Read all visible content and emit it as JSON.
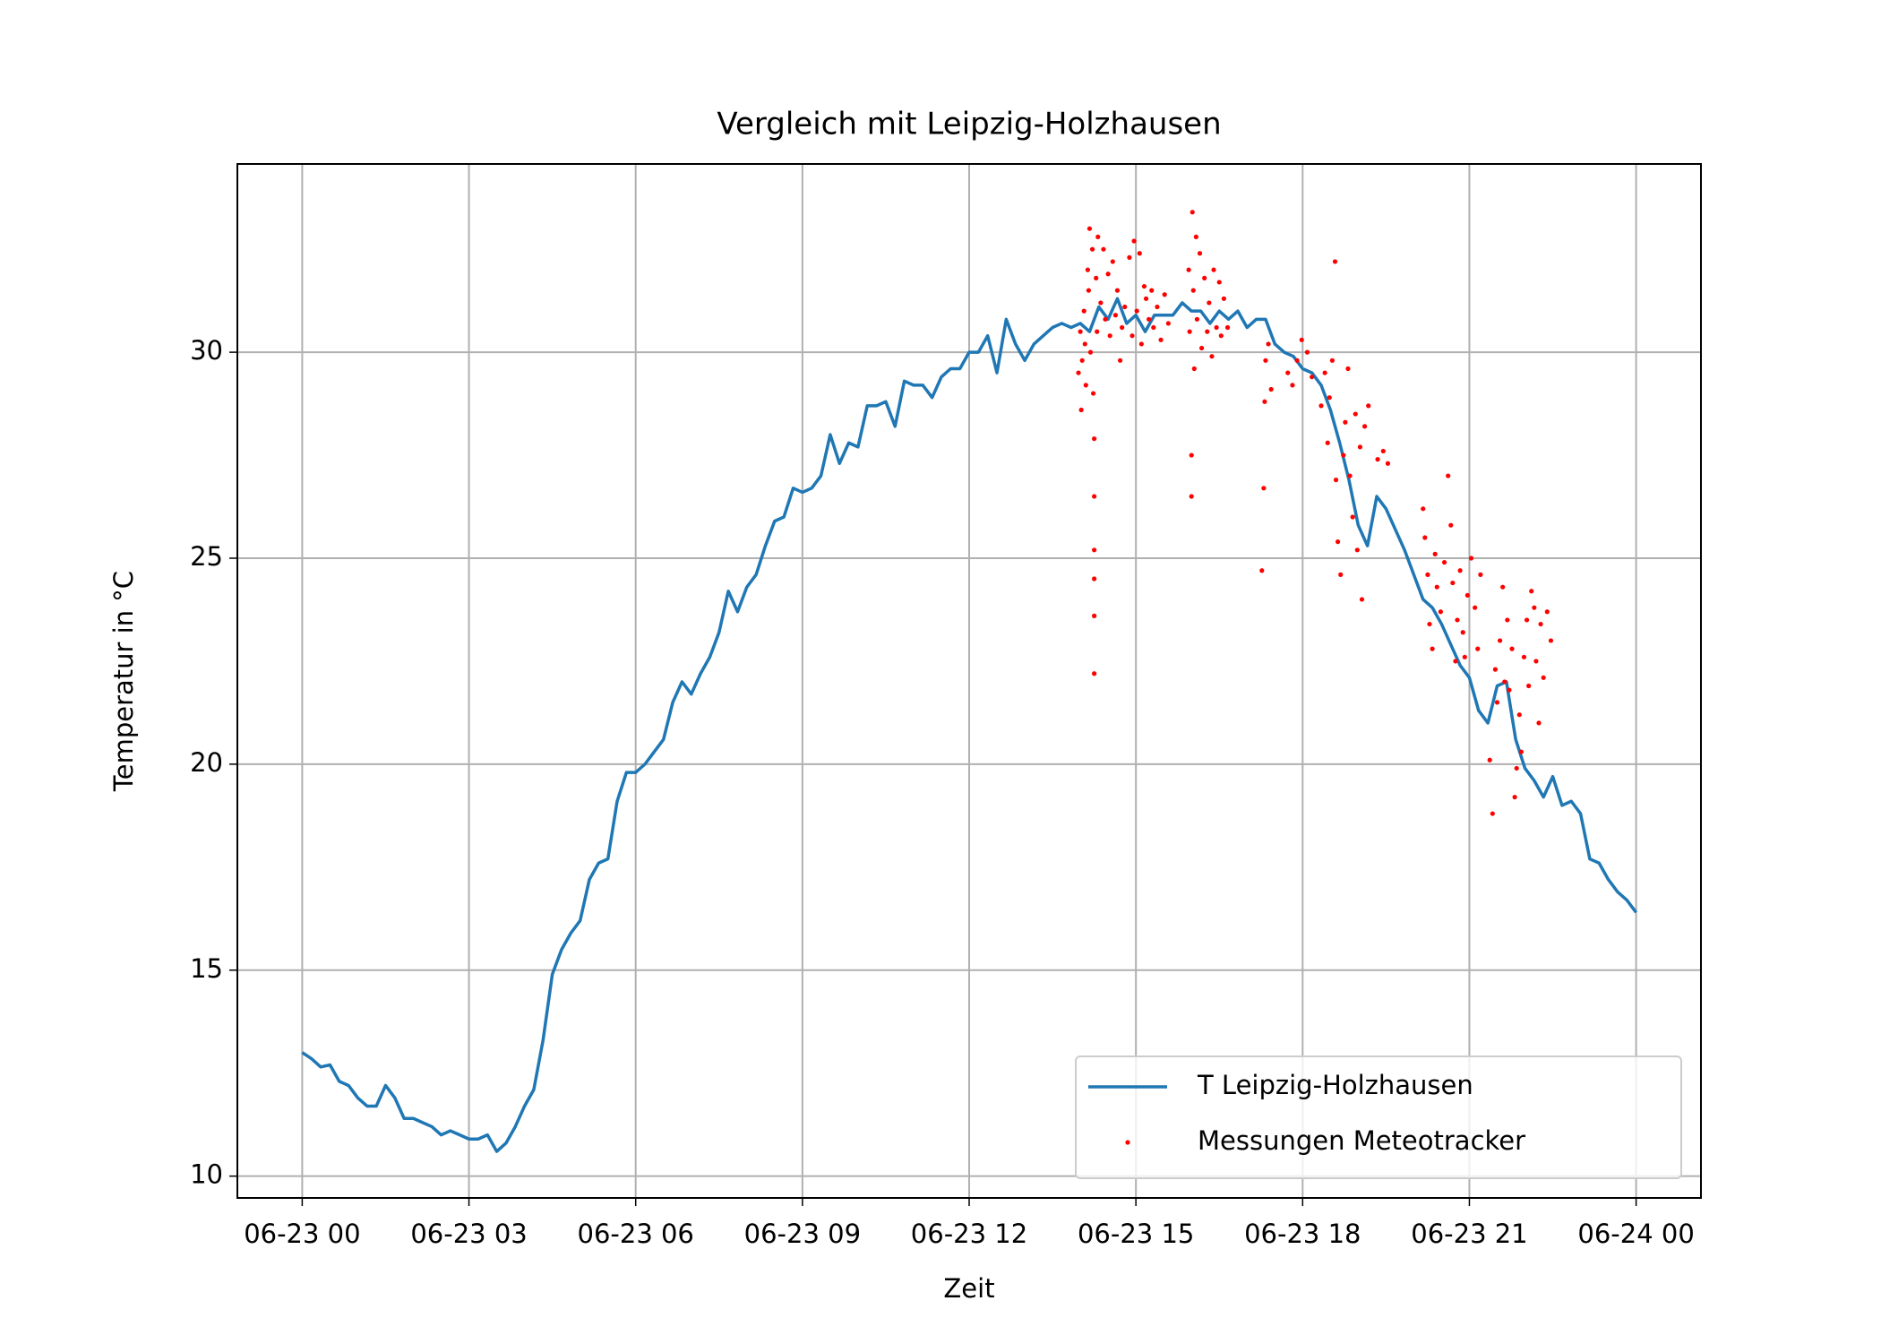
{
  "chart_data": {
    "type": "line",
    "title": "Vergleich mit Leipzig-Holzhausen",
    "x_label": "Zeit",
    "y_label": "Temperatur in °C",
    "xlim": [
      -70,
      1510
    ],
    "ylim": [
      9.47,
      34.57
    ],
    "xticks": [
      {
        "value": 0,
        "label": "06-23 00"
      },
      {
        "value": 180,
        "label": "06-23 03"
      },
      {
        "value": 360,
        "label": "06-23 06"
      },
      {
        "value": 540,
        "label": "06-23 09"
      },
      {
        "value": 720,
        "label": "06-23 12"
      },
      {
        "value": 900,
        "label": "06-23 15"
      },
      {
        "value": 1080,
        "label": "06-23 18"
      },
      {
        "value": 1260,
        "label": "06-23 21"
      },
      {
        "value": 1440,
        "label": "06-24 00"
      }
    ],
    "yticks": [
      10,
      15,
      20,
      25,
      30
    ],
    "grid": true,
    "legend": "lower right",
    "series": [
      {
        "name": "T Leipzig-Holzhausen",
        "color": "#1f77b4",
        "x": [
          0,
          10,
          20,
          30,
          40,
          50,
          60,
          70,
          80,
          90,
          100,
          110,
          120,
          130,
          140,
          150,
          160,
          170,
          180,
          190,
          200,
          210,
          220,
          230,
          240,
          250,
          260,
          270,
          280,
          290,
          300,
          310,
          320,
          330,
          340,
          350,
          360,
          370,
          380,
          390,
          400,
          410,
          420,
          430,
          440,
          450,
          460,
          470,
          480,
          490,
          500,
          510,
          520,
          530,
          540,
          550,
          560,
          570,
          580,
          590,
          600,
          610,
          620,
          630,
          640,
          650,
          660,
          670,
          680,
          690,
          700,
          710,
          720,
          730,
          740,
          750,
          760,
          770,
          780,
          790,
          800,
          810,
          820,
          830,
          840,
          850,
          860,
          870,
          880,
          890,
          900,
          910,
          920,
          930,
          940,
          950,
          960,
          970,
          980,
          990,
          1000,
          1010,
          1020,
          1030,
          1040,
          1050,
          1060,
          1070,
          1080,
          1090,
          1100,
          1110,
          1120,
          1130,
          1140,
          1150,
          1160,
          1170,
          1180,
          1190,
          1200,
          1210,
          1220,
          1230,
          1240,
          1250,
          1260,
          1270,
          1280,
          1290,
          1300,
          1310,
          1320,
          1330,
          1340,
          1350,
          1360,
          1370,
          1380,
          1390,
          1400,
          1410,
          1420,
          1430,
          1440
        ],
        "values": [
          13.0,
          12.85,
          12.65,
          12.7,
          12.3,
          12.2,
          11.9,
          11.7,
          11.7,
          12.2,
          11.9,
          11.4,
          11.4,
          11.3,
          11.2,
          11.0,
          11.1,
          11.0,
          10.9,
          10.9,
          11.0,
          10.6,
          10.8,
          11.2,
          11.7,
          12.1,
          13.3,
          14.9,
          15.5,
          15.9,
          16.2,
          17.2,
          17.6,
          17.7,
          19.1,
          19.8,
          19.8,
          20.0,
          20.3,
          20.6,
          21.5,
          22.0,
          21.7,
          22.2,
          22.6,
          23.2,
          24.2,
          23.7,
          24.3,
          24.6,
          25.3,
          25.9,
          26.0,
          26.7,
          26.6,
          26.7,
          27.0,
          28.0,
          27.3,
          27.8,
          27.7,
          28.7,
          28.7,
          28.8,
          28.2,
          29.3,
          29.2,
          29.2,
          28.9,
          29.4,
          29.6,
          29.6,
          30.0,
          30.0,
          30.4,
          29.5,
          30.8,
          30.2,
          29.8,
          30.2,
          30.4,
          30.6,
          30.7,
          30.6,
          30.7,
          30.5,
          31.1,
          30.8,
          31.3,
          30.7,
          30.9,
          30.5,
          30.9,
          30.9,
          30.9,
          31.2,
          31.0,
          31.0,
          30.7,
          31.0,
          30.8,
          31.0,
          30.6,
          30.8,
          30.8,
          30.2,
          30.0,
          29.9,
          29.6,
          29.5,
          29.2,
          28.6,
          27.8,
          26.9,
          25.8,
          25.3,
          26.5,
          26.2,
          25.7,
          25.2,
          24.6,
          24.0,
          23.8,
          23.4,
          22.9,
          22.4,
          22.1,
          21.3,
          21.0,
          21.9,
          22.0,
          20.6,
          19.9,
          19.6,
          19.2,
          19.7,
          19.0,
          19.1,
          18.8,
          17.7,
          17.6,
          17.2,
          16.9,
          16.7,
          16.4
        ]
      },
      {
        "name": "Messungen Meteotracker",
        "color": "#ff0000",
        "type": "scatter",
        "x": [
          838,
          840,
          841,
          842,
          844,
          845,
          846,
          848,
          849,
          850,
          851,
          853,
          854,
          855,
          855,
          855,
          855,
          855,
          855,
          857,
          858,
          859,
          862,
          865,
          867,
          870,
          872,
          875,
          878,
          880,
          883,
          885,
          888,
          893,
          896,
          898,
          901,
          904,
          906,
          909,
          911,
          914,
          917,
          919,
          923,
          927,
          931,
          935,
          957,
          958,
          960,
          960,
          961,
          962,
          963,
          965,
          966,
          969,
          971,
          974,
          977,
          979,
          982,
          984,
          987,
          990,
          992,
          995,
          999,
          1036,
          1038,
          1039,
          1040,
          1043,
          1046,
          1064,
          1069,
          1074,
          1079,
          1085,
          1090,
          1100,
          1104,
          1107,
          1109,
          1112,
          1115,
          1116,
          1118,
          1121,
          1124,
          1126,
          1129,
          1131,
          1134,
          1137,
          1139,
          1142,
          1144,
          1147,
          1151,
          1161,
          1167,
          1172,
          1210,
          1212,
          1215,
          1217,
          1220,
          1223,
          1225,
          1229,
          1233,
          1237,
          1240,
          1242,
          1245,
          1247,
          1250,
          1253,
          1255,
          1258,
          1262,
          1266,
          1269,
          1272,
          1282,
          1285,
          1288,
          1290,
          1293,
          1296,
          1298,
          1301,
          1303,
          1306,
          1309,
          1311,
          1314,
          1316,
          1319,
          1322,
          1324,
          1327,
          1330,
          1332,
          1335,
          1337,
          1340,
          1344,
          1348
        ],
        "values": [
          29.5,
          30.5,
          28.6,
          29.8,
          31.0,
          30.2,
          29.2,
          32.0,
          31.5,
          33.0,
          30.0,
          32.5,
          29.0,
          22.2,
          23.6,
          24.5,
          25.2,
          26.5,
          27.9,
          31.8,
          30.5,
          32.8,
          31.2,
          32.5,
          30.8,
          31.9,
          30.4,
          32.2,
          30.9,
          31.5,
          29.8,
          30.6,
          31.1,
          32.3,
          30.4,
          32.7,
          31.0,
          32.4,
          30.2,
          31.6,
          31.3,
          30.8,
          31.5,
          30.6,
          31.1,
          30.3,
          31.4,
          30.7,
          32.0,
          30.5,
          26.5,
          27.5,
          33.4,
          31.5,
          29.6,
          32.8,
          30.8,
          32.4,
          30.1,
          31.8,
          30.5,
          31.2,
          29.9,
          32.0,
          30.6,
          31.7,
          30.4,
          31.3,
          30.6,
          24.7,
          26.7,
          28.8,
          29.8,
          30.2,
          29.1,
          29.5,
          29.2,
          29.8,
          30.3,
          30.0,
          29.4,
          28.7,
          29.5,
          27.8,
          28.9,
          29.8,
          32.2,
          26.9,
          25.4,
          24.6,
          27.5,
          28.3,
          29.6,
          27.0,
          26.0,
          28.5,
          25.2,
          27.7,
          24.0,
          28.2,
          28.7,
          27.4,
          27.6,
          27.3,
          26.2,
          25.5,
          24.6,
          23.4,
          22.8,
          25.1,
          24.3,
          23.7,
          24.9,
          27.0,
          25.8,
          24.4,
          22.5,
          23.5,
          24.7,
          23.2,
          22.6,
          24.1,
          25.0,
          23.8,
          22.8,
          24.6,
          20.1,
          18.8,
          22.3,
          21.5,
          23.0,
          24.3,
          22.0,
          23.5,
          21.8,
          22.8,
          19.2,
          19.9,
          21.2,
          20.3,
          22.6,
          23.5,
          21.9,
          24.2,
          23.8,
          22.5,
          21.0,
          23.4,
          22.1,
          23.7,
          23.0
        ]
      }
    ]
  }
}
